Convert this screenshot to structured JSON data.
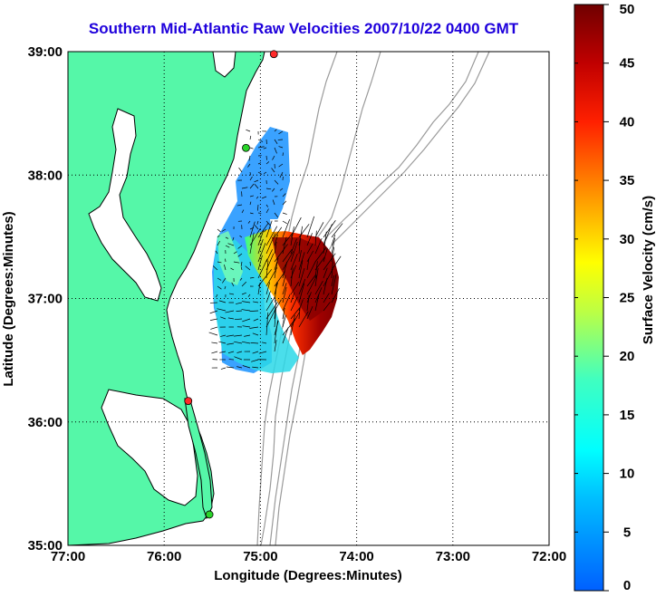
{
  "map": {
    "title": "Southern Mid-Atlantic Raw Velocities 2007/10/22 0400 GMT",
    "xlabel": "Longitude (Degrees:Minutes)",
    "ylabel": "Latitude (Degrees:Minutes)",
    "x_ticks": [
      "77:00",
      "76:00",
      "75:00",
      "74:00",
      "73:00",
      "72:00"
    ],
    "y_ticks": [
      "39:00",
      "38:00",
      "37:00",
      "36:00",
      "35:00"
    ],
    "lon_range": [
      -77,
      -72
    ],
    "lat_range": [
      35,
      39
    ],
    "grid": "dotted",
    "colors": {
      "land": "#55f7a8",
      "coast_line": "#000000",
      "bathymetry": "#9a9a9a",
      "site_active": "#ff2a2a",
      "site_inactive": "#2ad42a"
    },
    "stations": [
      {
        "lon": -74.86,
        "lat": 38.98,
        "status": "active"
      },
      {
        "lon": -75.15,
        "lat": 38.22,
        "status": "inactive"
      },
      {
        "lon": -75.75,
        "lat": 36.17,
        "status": "active"
      },
      {
        "lon": -75.53,
        "lat": 35.25,
        "status": "inactive"
      }
    ]
  },
  "colorbar": {
    "label": "Surface Velocity (cm/s)",
    "ticks": [
      "0",
      "5",
      "10",
      "15",
      "20",
      "25",
      "30",
      "35",
      "40",
      "45",
      "50"
    ],
    "range": [
      0,
      50
    ],
    "colormap": "jet"
  }
}
